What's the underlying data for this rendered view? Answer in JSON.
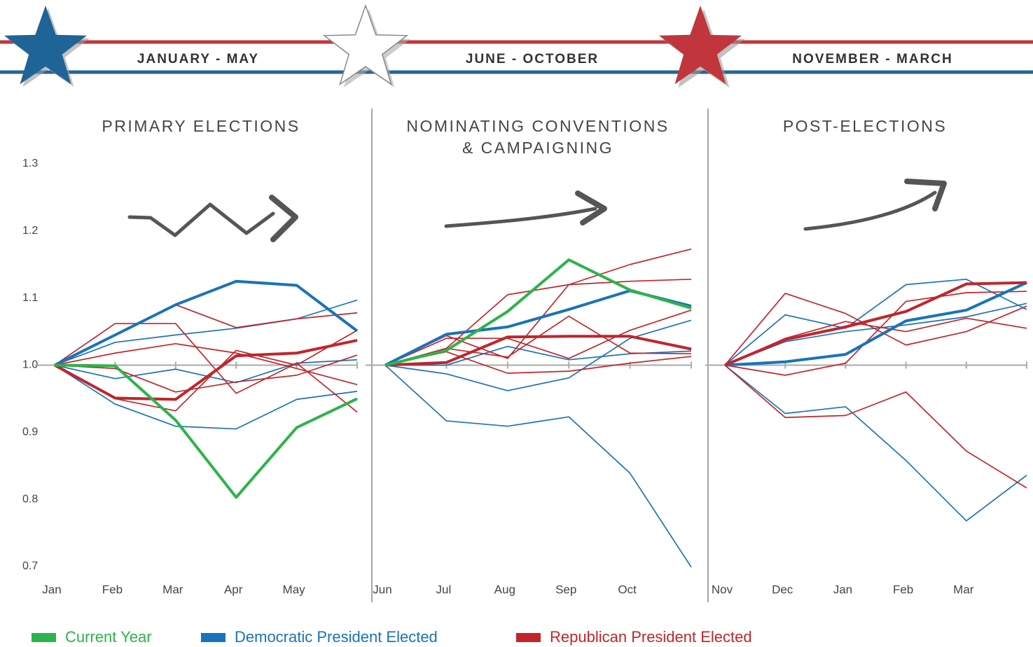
{
  "chart_data": [
    {
      "type": "line",
      "period": "JANUARY - MAY",
      "title": [
        "PRIMARY ELECTIONS"
      ],
      "categories": [
        "Jan",
        "Feb",
        "Mar",
        "Apr",
        "May",
        null
      ],
      "ylim": [
        0.7,
        1.3
      ],
      "yticks": [
        0.7,
        0.8,
        0.9,
        {
          "value": 1,
          "label": "1.0"
        },
        1.1,
        1.2,
        1.3
      ],
      "baseline": 1,
      "series": [
        {
          "color": "#1a73b8",
          "bold": false,
          "values": [
            1.0,
            1.034,
            1.045,
            1.055,
            1.069,
            1.097
          ]
        },
        {
          "color": "#1a73b8",
          "bold": false,
          "values": [
            1.0,
            0.98,
            0.994,
            0.974,
            1.003,
            1.008
          ]
        },
        {
          "color": "#1a73b8",
          "bold": false,
          "values": [
            1.0,
            0.942,
            0.909,
            0.905,
            0.949,
            0.961
          ]
        },
        {
          "color": "#c0262c",
          "bold": false,
          "values": [
            1.0,
            1.062,
            1.062,
            0.958,
            1.003,
            0.93
          ]
        },
        {
          "color": "#c0262c",
          "bold": false,
          "values": [
            1.0,
            1.045,
            1.09,
            1.056,
            1.069,
            1.078
          ]
        },
        {
          "color": "#c0262c",
          "bold": false,
          "values": [
            1.0,
            1.018,
            1.032,
            1.018,
            0.995,
            0.971
          ]
        },
        {
          "color": "#c0262c",
          "bold": false,
          "values": [
            1.0,
            0.95,
            0.932,
            1.022,
            1.0,
            1.052
          ]
        },
        {
          "color": "#c0262c",
          "bold": false,
          "values": [
            1.0,
            0.995,
            0.96,
            0.975,
            0.985,
            1.015
          ]
        },
        {
          "color": "#1a73b8",
          "bold": true,
          "values": [
            1.0,
            1.045,
            1.09,
            1.125,
            1.119,
            1.051
          ]
        },
        {
          "color": "#c0262c",
          "bold": true,
          "values": [
            1.0,
            0.951,
            0.949,
            1.014,
            1.018,
            1.037
          ]
        },
        {
          "color": "#2db34a",
          "bold": true,
          "values": [
            1.0,
            0.999,
            0.918,
            0.803,
            0.907,
            0.95
          ]
        }
      ]
    },
    {
      "type": "line",
      "period": "JUNE - OCTOBER",
      "title": [
        "NOMINATING CONVENTIONS",
        "& CAMPAIGNING"
      ],
      "categories": [
        "Jun",
        "Jul",
        "Aug",
        "Sep",
        "Oct",
        null
      ],
      "ylim": [
        0.7,
        1.3
      ],
      "baseline": 1,
      "series": [
        {
          "color": "#1a73b8",
          "bold": false,
          "values": [
            1.0,
            0.917,
            0.909,
            0.923,
            0.839,
            0.699
          ]
        },
        {
          "color": "#1a73b8",
          "bold": false,
          "values": [
            1.0,
            0.987,
            0.962,
            0.981,
            1.04,
            1.067
          ]
        },
        {
          "color": "#1a73b8",
          "bold": false,
          "values": [
            1.0,
            1.0,
            1.028,
            1.008,
            1.017,
            1.021
          ]
        },
        {
          "color": "#c0262c",
          "bold": false,
          "values": [
            1.0,
            1.025,
            1.105,
            1.12,
            1.15,
            1.173
          ]
        },
        {
          "color": "#c0262c",
          "bold": false,
          "values": [
            1.0,
            1.044,
            1.01,
            1.12,
            1.125,
            1.128
          ]
        },
        {
          "color": "#c0262c",
          "bold": false,
          "values": [
            1.0,
            1.02,
            0.988,
            0.991,
            1.003,
            1.013
          ]
        },
        {
          "color": "#c0262c",
          "bold": false,
          "values": [
            1.0,
            1.025,
            1.012,
            1.073,
            1.018,
            1.017
          ]
        },
        {
          "color": "#c0262c",
          "bold": false,
          "values": [
            1.0,
            1.04,
            1.04,
            1.01,
            1.052,
            1.082
          ]
        },
        {
          "color": "#1a73b8",
          "bold": true,
          "values": [
            1.0,
            1.046,
            1.057,
            1.083,
            1.111,
            1.088
          ]
        },
        {
          "color": "#c0262c",
          "bold": true,
          "values": [
            1.0,
            1.004,
            1.042,
            1.043,
            1.043,
            1.024
          ]
        },
        {
          "color": "#2db34a",
          "bold": true,
          "values": [
            1.0,
            1.022,
            1.08,
            1.157,
            1.112,
            1.085
          ]
        }
      ]
    },
    {
      "type": "line",
      "period": "NOVEMBER - MARCH",
      "title": [
        "POST-ELECTIONS"
      ],
      "categories": [
        "Nov",
        "Dec",
        "Jan",
        "Feb",
        "Mar",
        null
      ],
      "ylim": [
        0.7,
        1.3
      ],
      "baseline": 1,
      "series": [
        {
          "color": "#1a73b8",
          "bold": false,
          "values": [
            1.0,
            1.075,
            1.055,
            1.12,
            1.128,
            1.083
          ]
        },
        {
          "color": "#1a73b8",
          "bold": false,
          "values": [
            1.0,
            1.035,
            1.05,
            1.06,
            1.072,
            1.092
          ]
        },
        {
          "color": "#1a73b8",
          "bold": false,
          "values": [
            1.0,
            0.928,
            0.938,
            0.858,
            0.768,
            0.836
          ]
        },
        {
          "color": "#c0262c",
          "bold": false,
          "values": [
            1.0,
            1.107,
            1.077,
            1.03,
            1.05,
            1.088
          ]
        },
        {
          "color": "#c0262c",
          "bold": false,
          "values": [
            1.0,
            0.985,
            1.003,
            1.095,
            1.108,
            1.11
          ]
        },
        {
          "color": "#c0262c",
          "bold": false,
          "values": [
            1.0,
            1.04,
            1.065,
            1.05,
            1.07,
            1.055
          ]
        },
        {
          "color": "#c0262c",
          "bold": false,
          "values": [
            1.0,
            0.922,
            0.925,
            0.96,
            0.872,
            0.817
          ]
        },
        {
          "color": "#1a73b8",
          "bold": true,
          "values": [
            1.0,
            1.005,
            1.016,
            1.066,
            1.082,
            1.123
          ]
        },
        {
          "color": "#c0262c",
          "bold": true,
          "values": [
            1.0,
            1.038,
            1.057,
            1.08,
            1.121,
            1.123
          ]
        }
      ]
    }
  ],
  "legend": [
    {
      "name": "Current Year",
      "color": "#2db34a"
    },
    {
      "name": "Democratic President Elected",
      "color": "#1a73b8"
    },
    {
      "name": "Republican President Elected",
      "color": "#c0262c"
    }
  ]
}
